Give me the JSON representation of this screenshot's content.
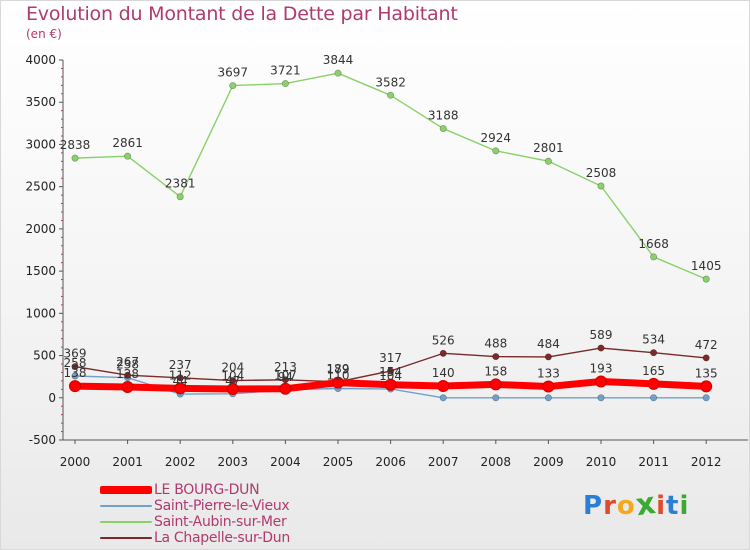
{
  "header": {
    "title": "Evolution du Montant de la Dette par Habitant",
    "subtitle": "(en €)"
  },
  "logo": {
    "text": "Proxiti",
    "colors": [
      "#2a7fd4",
      "#e04b2c",
      "#f3a91b",
      "#3aaa35",
      "#e04b2c",
      "#2a7fd4",
      "#3aaa35"
    ]
  },
  "chart_data": {
    "type": "line",
    "title": "Evolution du Montant de la Dette par Habitant",
    "subtitle": "(en €)",
    "xlabel": "",
    "ylabel": "",
    "x": [
      "2000",
      "2001",
      "2002",
      "2003",
      "2004",
      "2005",
      "2006",
      "2007",
      "2008",
      "2009",
      "2010",
      "2011",
      "2012"
    ],
    "ylim": [
      -500,
      4000
    ],
    "yticks": [
      -500,
      0,
      500,
      1000,
      1500,
      2000,
      2500,
      3000,
      3500,
      4000
    ],
    "grid": false,
    "legend_position": "bottom-left",
    "series": [
      {
        "name": "LE BOURG-DUN",
        "color": "#ff0000",
        "values": [
          138,
          128,
          112,
          104,
          107,
          179,
          154,
          140,
          158,
          133,
          193,
          165,
          135
        ],
        "labels": [
          "138",
          "128",
          "112",
          "104",
          "107",
          "179",
          "154",
          "140",
          "158",
          "133",
          "193",
          "165",
          "135"
        ]
      },
      {
        "name": "Saint-Pierre-le-Vieux",
        "color": "#6fa1cc",
        "values": [
          258,
          238,
          44,
          47,
          94,
          110,
          104,
          0,
          0,
          0,
          0,
          0,
          0
        ],
        "labels": [
          "258",
          "238",
          "44",
          "47",
          "94",
          "110",
          "104",
          "",
          "",
          "",
          "",
          "",
          ""
        ]
      },
      {
        "name": "Saint-Aubin-sur-Mer",
        "color": "#8ad16a",
        "values": [
          2838,
          2861,
          2381,
          3697,
          3721,
          3844,
          3582,
          3188,
          2924,
          2801,
          2508,
          1668,
          1405
        ],
        "labels": [
          "2838",
          "2861",
          "2381",
          "3697",
          "3721",
          "3844",
          "3582",
          "3188",
          "2924",
          "2801",
          "2508",
          "1668",
          "1405"
        ]
      },
      {
        "name": "La Chapelle-sur-Dun",
        "color": "#7a2a2a",
        "values": [
          369,
          267,
          237,
          204,
          213,
          189,
          317,
          526,
          488,
          484,
          589,
          534,
          472
        ],
        "labels": [
          "369",
          "267",
          "237",
          "204",
          "213",
          "189",
          "317",
          "526",
          "488",
          "484",
          "589",
          "534",
          "472"
        ]
      }
    ]
  }
}
